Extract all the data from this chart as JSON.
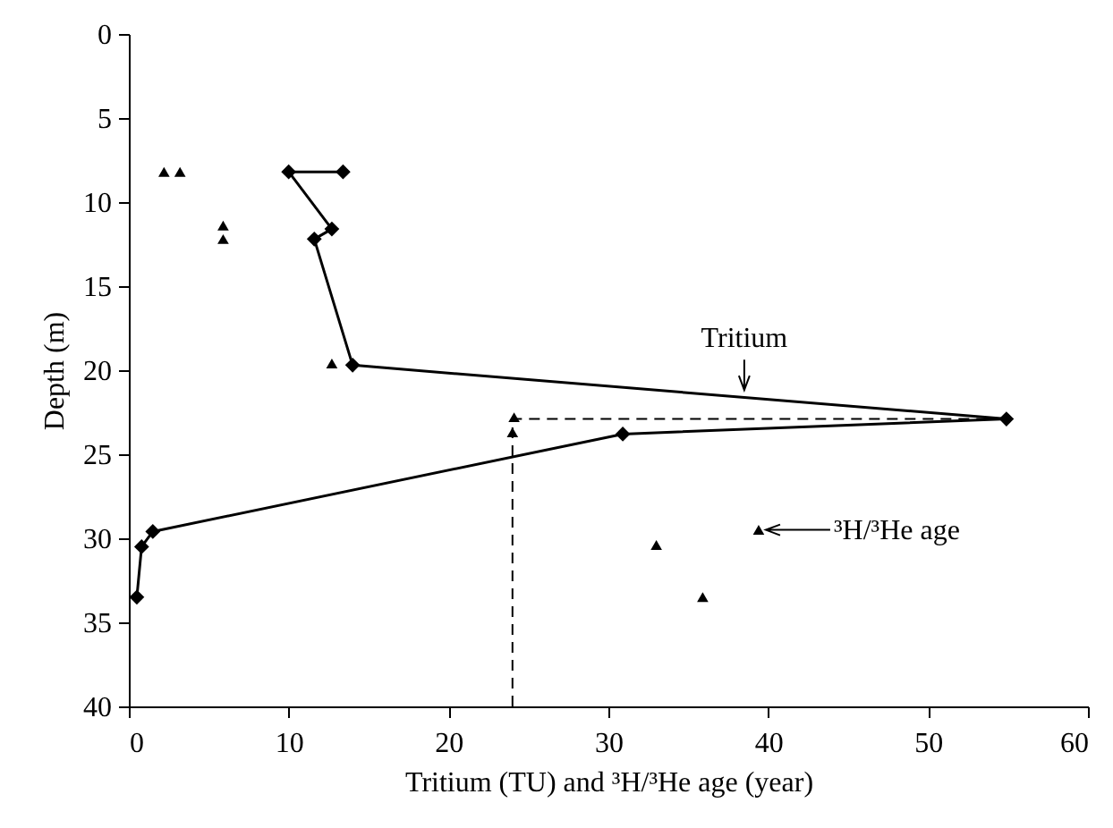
{
  "chart_data": {
    "type": "line",
    "xlabel": "Tritium (TU) and ³H/³He age (year)",
    "ylabel": "Depth (m)",
    "xlim": [
      0,
      60
    ],
    "xticks": [
      0,
      10,
      20,
      30,
      40,
      50,
      60
    ],
    "ylim": [
      40,
      0
    ],
    "yticks": [
      0,
      5,
      10,
      15,
      20,
      25,
      30,
      35,
      40
    ],
    "grid": false,
    "series": [
      {
        "color": "#000000",
        "marker": "diamond",
        "line_style": "solid",
        "x": [
          13.4,
          10.0,
          12.7,
          11.6,
          14.0,
          54.9,
          30.9,
          1.5,
          0.8,
          0.5
        ],
        "values": [
          8.2,
          8.2,
          11.6,
          12.2,
          19.7,
          22.9,
          23.8,
          29.6,
          30.5,
          33.5
        ]
      },
      {
        "type": "scatter",
        "color": "#000000",
        "marker": "triangle",
        "x": [
          2.2,
          3.2,
          5.9,
          5.9,
          12.7,
          24.1,
          24.0,
          33.0,
          35.9,
          39.4
        ],
        "values": [
          8.2,
          8.2,
          11.4,
          12.2,
          19.6,
          22.8,
          23.7,
          30.4,
          33.5,
          29.5
        ]
      },
      {
        "type": "line",
        "color": "#000000",
        "marker": "none",
        "line_style": "dashed",
        "x": [
          24.0,
          24.0,
          54.9
        ],
        "values": [
          40,
          22.9,
          22.9
        ]
      }
    ],
    "annotations": [
      {
        "text": "Tritium",
        "x": 38.5,
        "y": 21.5
      },
      {
        "text": "³H/³He age",
        "x": 39.4,
        "y": 29.5
      }
    ]
  }
}
